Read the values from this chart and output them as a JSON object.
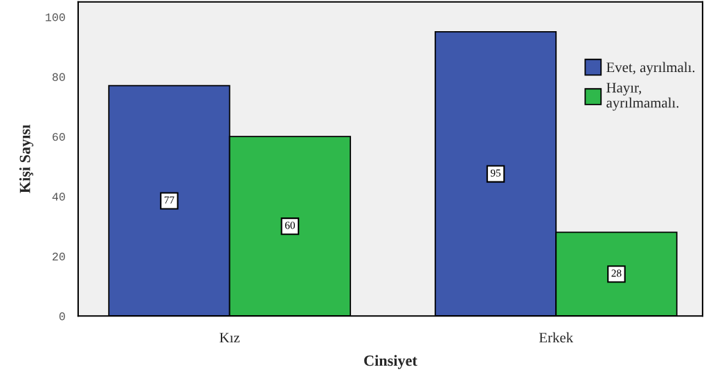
{
  "chart_data": {
    "type": "bar",
    "xlabel": "Cinsiyet",
    "ylabel": "Kişi Sayısı",
    "categories": [
      "Kız",
      "Erkek"
    ],
    "series": [
      {
        "name": "Evet, ayrılmalı.",
        "color": "#3e58ac",
        "values": [
          77,
          95
        ]
      },
      {
        "name": "Hayır,\nayrılmamalı.",
        "color": "#2fb84b",
        "values": [
          60,
          28
        ]
      }
    ],
    "ylim": [
      0,
      105
    ],
    "yticks": [
      0,
      20,
      40,
      60,
      80,
      100
    ],
    "data_labels": true,
    "grid": false,
    "legend": "top right"
  }
}
